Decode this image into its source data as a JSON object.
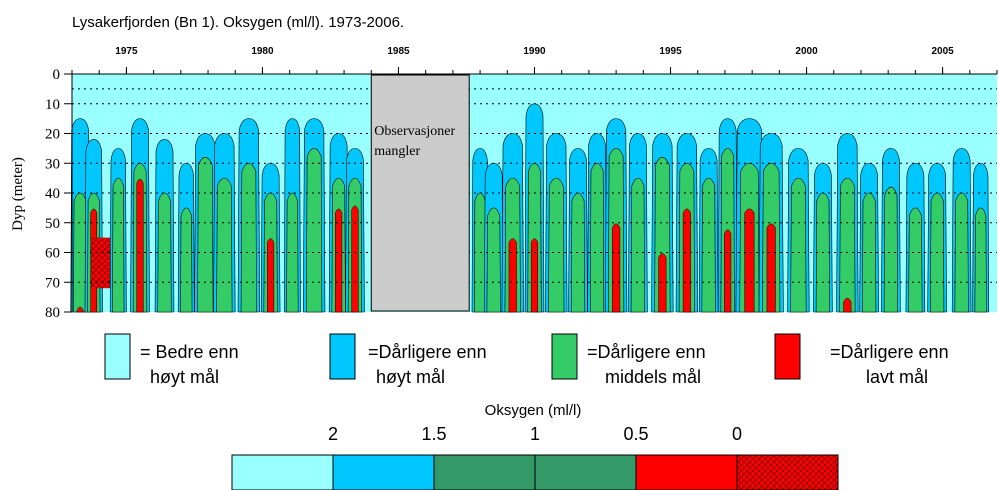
{
  "chart_data": {
    "type": "heatmap",
    "title": "Lysakerfjorden (Bn 1). Oksygen (ml/l). 1973-2006.",
    "ylabel": "Dyp (meter)",
    "xlabel": "",
    "x_range": [
      1973,
      2007
    ],
    "ylim": [
      80,
      0
    ],
    "x_ticks": [
      "1975",
      "1980",
      "1985",
      "1990",
      "1995",
      "2000",
      "2005"
    ],
    "y_ticks": [
      "0",
      "10",
      "20",
      "30",
      "40",
      "50",
      "60",
      "70",
      "80"
    ],
    "gap": {
      "from": 1984.0,
      "to": 1987.6,
      "label_line1": "Observasjoner",
      "label_line2": "mangler"
    },
    "colors": {
      "better_high": "#99ffff",
      "worse_high": "#00c8ff",
      "worse_medium": "#33cc66",
      "worse_low": "#ff0000",
      "worse_low_hatch": "#cc0000",
      "scale_mid": "#339966"
    },
    "episodes": [
      {
        "x": 1973.3,
        "w": 0.4,
        "blue": 15,
        "green": 40,
        "red": 78
      },
      {
        "x": 1973.8,
        "w": 0.35,
        "blue": 22,
        "green": 40,
        "red": 45
      },
      {
        "x": 1974.7,
        "w": 0.3,
        "blue": 25,
        "green": 35,
        "red": 80
      },
      {
        "x": 1975.5,
        "w": 0.4,
        "blue": 15,
        "green": 30,
        "red": 35
      },
      {
        "x": 1976.4,
        "w": 0.4,
        "blue": 22,
        "green": 40,
        "red": 80
      },
      {
        "x": 1977.2,
        "w": 0.3,
        "blue": 30,
        "green": 45,
        "red": 80
      },
      {
        "x": 1977.9,
        "w": 0.5,
        "blue": 20,
        "green": 28,
        "red": 80
      },
      {
        "x": 1978.6,
        "w": 0.5,
        "blue": 20,
        "green": 35,
        "red": 80
      },
      {
        "x": 1979.5,
        "w": 0.5,
        "blue": 15,
        "green": 30,
        "red": 80
      },
      {
        "x": 1980.3,
        "w": 0.4,
        "blue": 30,
        "green": 40,
        "red": 55
      },
      {
        "x": 1981.1,
        "w": 0.3,
        "blue": 15,
        "green": 40,
        "red": 80
      },
      {
        "x": 1981.9,
        "w": 0.5,
        "blue": 15,
        "green": 25,
        "red": 80
      },
      {
        "x": 1982.8,
        "w": 0.4,
        "blue": 20,
        "green": 35,
        "red": 45
      },
      {
        "x": 1983.4,
        "w": 0.4,
        "blue": 25,
        "green": 35,
        "red": 44
      },
      {
        "x": 1988.0,
        "w": 0.3,
        "blue": 25,
        "green": 40,
        "red": 80
      },
      {
        "x": 1988.5,
        "w": 0.4,
        "blue": 30,
        "green": 45,
        "red": 80
      },
      {
        "x": 1989.2,
        "w": 0.5,
        "blue": 20,
        "green": 35,
        "red": 55
      },
      {
        "x": 1990.0,
        "w": 0.4,
        "blue": 10,
        "green": 30,
        "red": 55
      },
      {
        "x": 1990.8,
        "w": 0.5,
        "blue": 20,
        "green": 35,
        "red": 80
      },
      {
        "x": 1991.6,
        "w": 0.4,
        "blue": 25,
        "green": 40,
        "red": 80
      },
      {
        "x": 1992.3,
        "w": 0.4,
        "blue": 20,
        "green": 30,
        "red": 80
      },
      {
        "x": 1993.0,
        "w": 0.5,
        "blue": 15,
        "green": 25,
        "red": 50
      },
      {
        "x": 1993.8,
        "w": 0.4,
        "blue": 20,
        "green": 35,
        "red": 80
      },
      {
        "x": 1994.7,
        "w": 0.5,
        "blue": 20,
        "green": 28,
        "red": 60
      },
      {
        "x": 1995.6,
        "w": 0.5,
        "blue": 20,
        "green": 30,
        "red": 45
      },
      {
        "x": 1996.4,
        "w": 0.4,
        "blue": 25,
        "green": 35,
        "red": 80
      },
      {
        "x": 1997.1,
        "w": 0.4,
        "blue": 15,
        "green": 25,
        "red": 52
      },
      {
        "x": 1997.9,
        "w": 0.7,
        "blue": 15,
        "green": 30,
        "red": 45
      },
      {
        "x": 1998.7,
        "w": 0.6,
        "blue": 20,
        "green": 30,
        "red": 50
      },
      {
        "x": 1999.7,
        "w": 0.5,
        "blue": 25,
        "green": 35,
        "red": 80
      },
      {
        "x": 2000.6,
        "w": 0.4,
        "blue": 30,
        "green": 40,
        "red": 80
      },
      {
        "x": 2001.5,
        "w": 0.5,
        "blue": 20,
        "green": 35,
        "red": 75
      },
      {
        "x": 2002.3,
        "w": 0.4,
        "blue": 30,
        "green": 40,
        "red": 80
      },
      {
        "x": 2003.1,
        "w": 0.4,
        "blue": 25,
        "green": 38,
        "red": 80
      },
      {
        "x": 2004.0,
        "w": 0.4,
        "blue": 30,
        "green": 45,
        "red": 80
      },
      {
        "x": 2004.8,
        "w": 0.4,
        "blue": 30,
        "green": 40,
        "red": 80
      },
      {
        "x": 2005.7,
        "w": 0.4,
        "blue": 25,
        "green": 40,
        "red": 80
      },
      {
        "x": 2006.4,
        "w": 0.3,
        "blue": 30,
        "green": 45,
        "red": 80
      }
    ]
  },
  "legend": [
    {
      "color": "#99ffff",
      "line1": "= Bedre enn",
      "line2": "høyt mål"
    },
    {
      "color": "#00c8ff",
      "line1": "=Dårligere enn",
      "line2": "høyt mål"
    },
    {
      "color": "#33cc66",
      "line1": "=Dårligere enn",
      "line2": "middels mål"
    },
    {
      "color": "#ff0000",
      "line1": "=Dårligere enn",
      "line2": "lavt mål"
    }
  ],
  "scale": {
    "title": "Oksygen (ml/l)",
    "labels": [
      "2",
      "1.5",
      "1",
      "0.5",
      "0"
    ],
    "swatches": [
      "#99ffff",
      "#00c8ff",
      "#339966",
      "#339966",
      "#ff0000",
      "hatch"
    ]
  }
}
